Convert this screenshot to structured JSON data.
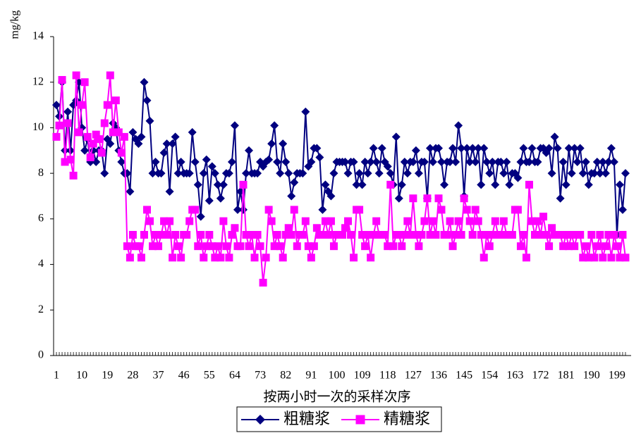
{
  "chart_data": {
    "type": "line",
    "y_label": "mg/kg",
    "x_label": "按两小时一次的采样次序",
    "x": [
      1,
      2,
      3,
      4,
      5,
      6,
      7,
      8,
      9,
      10,
      11,
      12,
      13,
      14,
      15,
      16,
      17,
      18,
      19,
      20,
      21,
      22,
      23,
      24,
      25,
      26,
      27,
      28,
      29,
      30,
      31,
      32,
      33,
      34,
      35,
      36,
      37,
      38,
      39,
      40,
      41,
      42,
      43,
      44,
      45,
      46,
      47,
      48,
      49,
      50,
      51,
      52,
      53,
      54,
      55,
      56,
      57,
      58,
      59,
      60,
      61,
      62,
      63,
      64,
      65,
      66,
      67,
      68,
      69,
      70,
      71,
      72,
      73,
      74,
      75,
      76,
      77,
      78,
      79,
      80,
      81,
      82,
      83,
      84,
      85,
      86,
      87,
      88,
      89,
      90,
      91,
      92,
      93,
      94,
      95,
      96,
      97,
      98,
      99,
      100,
      101,
      102,
      103,
      104,
      105,
      106,
      107,
      108,
      109,
      110,
      111,
      112,
      113,
      114,
      115,
      116,
      117,
      118,
      119,
      120,
      121,
      122,
      123,
      124,
      125,
      126,
      127,
      128,
      129,
      130,
      131,
      132,
      133,
      134,
      135,
      136,
      137,
      138,
      139,
      140,
      141,
      142,
      143,
      144,
      145,
      146,
      147,
      148,
      149,
      150,
      151,
      152,
      153,
      154,
      155,
      156,
      157,
      158,
      159,
      160,
      161,
      162,
      163,
      164,
      165,
      166,
      167,
      168,
      169,
      170,
      171,
      172,
      173,
      174,
      175,
      176,
      177,
      178,
      179,
      180,
      181,
      182,
      183,
      184,
      185,
      186,
      187,
      188,
      189,
      190,
      191,
      192,
      193,
      194,
      195,
      196,
      197,
      198,
      199,
      200,
      201,
      202
    ],
    "xlim": [
      0,
      204
    ],
    "xticks": [
      1,
      10,
      19,
      28,
      37,
      46,
      55,
      64,
      73,
      82,
      91,
      100,
      109,
      118,
      127,
      136,
      145,
      154,
      163,
      172,
      181,
      190,
      199
    ],
    "ylim": [
      0,
      14
    ],
    "yticks": [
      0,
      2,
      4,
      6,
      8,
      10,
      12,
      14
    ],
    "legend": "bottom",
    "series": [
      {
        "name": "粗糖浆",
        "color": "#000080",
        "marker": "diamond",
        "values": [
          11,
          10.5,
          12,
          9,
          10.7,
          9,
          11,
          11.2,
          12,
          10,
          9,
          9.5,
          8.5,
          9,
          8.5,
          9,
          9,
          8,
          9.5,
          9.3,
          10.2,
          10,
          9,
          8.5,
          8,
          8,
          7.2,
          9.8,
          9.5,
          9.3,
          9.6,
          12,
          11.2,
          10.3,
          8,
          8.5,
          8,
          8,
          8.9,
          9.3,
          7.2,
          9.3,
          9.6,
          8,
          8.5,
          8,
          8,
          8,
          9.8,
          8.5,
          7.5,
          6.1,
          8,
          8.6,
          6.8,
          8.3,
          8,
          7.5,
          6.9,
          7.5,
          8,
          8,
          8.5,
          10.1,
          6.4,
          7.2,
          6.4,
          8,
          9,
          8,
          8,
          8,
          8.5,
          8.3,
          8.5,
          8.6,
          9.3,
          10.1,
          8.5,
          8,
          9.3,
          8.5,
          8,
          7,
          7.6,
          8,
          8,
          8,
          10.7,
          8.3,
          8.5,
          9.1,
          9.1,
          8.7,
          6.4,
          7.5,
          7.2,
          7,
          8,
          8.5,
          8.5,
          8.5,
          8.5,
          8,
          8.5,
          8.5,
          7.5,
          8,
          7.5,
          8.5,
          8,
          8.5,
          9.1,
          8.5,
          8,
          9.1,
          8.5,
          8.3,
          8,
          7.5,
          9.6,
          6.9,
          7.5,
          8.5,
          8,
          8.5,
          8.5,
          9,
          8,
          8.5,
          8.5,
          6.9,
          9.1,
          8.5,
          9.1,
          9.1,
          8.5,
          7.5,
          8.5,
          8.5,
          9.1,
          8.5,
          10.1,
          9.1,
          7,
          9.1,
          8.5,
          9.1,
          8.5,
          9.1,
          7.5,
          9.1,
          8.5,
          8,
          8.5,
          7.5,
          8.5,
          8.5,
          8,
          8.5,
          7.5,
          8,
          8,
          7.8,
          8.5,
          9.1,
          8.5,
          8.5,
          9.1,
          8.5,
          8.5,
          9.1,
          9.1,
          8.9,
          9.1,
          8,
          9.6,
          9.1,
          6.9,
          8.5,
          7.5,
          9.1,
          8,
          9.1,
          8.5,
          9.1,
          8,
          8.5,
          7.5,
          8,
          8,
          8.5,
          8,
          8.5,
          8,
          8.5,
          9.1,
          8.5,
          5.3,
          7.5,
          6.4,
          8
        ]
      },
      {
        "name": "精糖浆",
        "color": "#ff00ff",
        "marker": "square",
        "values": [
          9.6,
          10.1,
          12.1,
          8.5,
          10.2,
          8.6,
          7.9,
          12.3,
          9.8,
          11,
          12,
          9.6,
          8.7,
          9.3,
          9.7,
          9.5,
          8.9,
          10.2,
          11,
          12.3,
          9.8,
          11.2,
          9.8,
          8.9,
          9.6,
          4.8,
          4.3,
          5.3,
          4.8,
          4.8,
          4.3,
          5.3,
          6.4,
          5.9,
          4.8,
          5.3,
          4.8,
          5.3,
          5.9,
          5.3,
          5.9,
          4.3,
          5.3,
          4.8,
          4.3,
          5.3,
          5.3,
          5.9,
          6.4,
          6.4,
          4.8,
          5.3,
          4.3,
          4.8,
          5.3,
          4.8,
          4.3,
          4.8,
          4.3,
          5.9,
          4.8,
          4.3,
          5.3,
          5.6,
          4.8,
          4.8,
          7.5,
          5.3,
          4.8,
          5.3,
          4.3,
          5.3,
          4.8,
          3.2,
          4.3,
          6.4,
          5.9,
          4.8,
          5.3,
          4.8,
          4.3,
          5.3,
          5.6,
          5.3,
          6.4,
          4.8,
          5.3,
          5.3,
          5.9,
          4.8,
          4.3,
          4.8,
          5.6,
          5.3,
          5.3,
          5.9,
          5.3,
          5.9,
          4.8,
          5.3,
          5.3,
          5.3,
          5.6,
          5.9,
          5.3,
          4.3,
          6.4,
          6.4,
          5.3,
          4.8,
          5.3,
          4.3,
          5.3,
          5.9,
          5.3,
          5.3,
          5.3,
          4.8,
          7.5,
          4.8,
          5.3,
          5.3,
          4.8,
          5.3,
          5.9,
          5.3,
          6.9,
          5.3,
          4.8,
          5.3,
          5.9,
          6.9,
          5.3,
          5.9,
          5.3,
          6.9,
          6.4,
          5.3,
          5.3,
          5.9,
          4.8,
          5.3,
          5.9,
          5.3,
          6.9,
          6.4,
          5.9,
          5.3,
          6.4,
          5.9,
          5.3,
          4.3,
          5.3,
          4.8,
          5.3,
          5.9,
          5.3,
          5.3,
          5.9,
          5.3,
          5.3,
          5.3,
          6.4,
          6.4,
          4.8,
          5.3,
          4.3,
          7.5,
          5.9,
          5.3,
          5.9,
          5.3,
          6.1,
          5.3,
          4.8,
          5.6,
          5.3,
          5.3,
          5.3,
          4.8,
          5.3,
          4.8,
          5.3,
          4.8,
          5.3,
          5.3,
          4.3,
          4.8,
          4.3,
          5.3,
          4.3,
          4.8,
          5.3,
          4.3,
          4.8,
          5.3,
          4.3,
          5.3,
          4.8,
          4.3,
          5.3,
          4.3
        ]
      }
    ]
  }
}
